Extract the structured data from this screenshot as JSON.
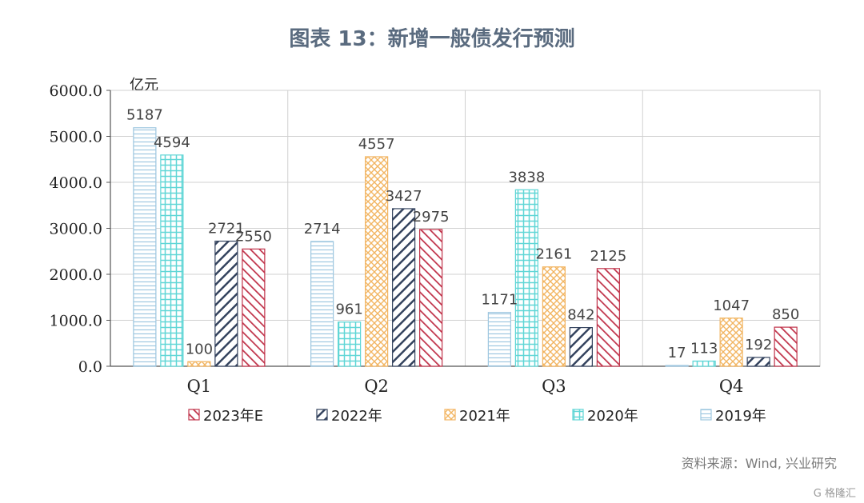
{
  "title": "图表 13：新增一般债发行预测",
  "source": "资料来源：Wind, 兴业研究",
  "watermark": "G 格隆汇",
  "chart_data": {
    "type": "bar",
    "title": "图表 13：新增一般债发行预测",
    "unit_label": "亿元",
    "categories": [
      "Q1",
      "Q2",
      "Q3",
      "Q4"
    ],
    "ylim": [
      0,
      6000
    ],
    "yticks": [
      "0.0",
      "1000.0",
      "2000.0",
      "3000.0",
      "4000.0",
      "5000.0",
      "6000.0"
    ],
    "grid": true,
    "legend_position": "bottom",
    "series": [
      {
        "name": "2019年",
        "values": [
          5187,
          2714,
          1171,
          17
        ],
        "color": "#9ec7e0",
        "pattern": "horizontal-lines"
      },
      {
        "name": "2020年",
        "values": [
          4594,
          961,
          3838,
          113
        ],
        "color": "#5fd6d6",
        "pattern": "grid"
      },
      {
        "name": "2021年",
        "values": [
          100,
          4557,
          2161,
          1047
        ],
        "color": "#f2b562",
        "pattern": "crosshatch"
      },
      {
        "name": "2022年",
        "values": [
          2721,
          3427,
          842,
          192
        ],
        "color": "#34435e",
        "pattern": "diagonal-wide"
      },
      {
        "name": "2023年E",
        "values": [
          2550,
          2975,
          2125,
          850
        ],
        "color": "#c0334a",
        "pattern": "diagonal"
      }
    ],
    "legend_order": [
      "2023年E",
      "2022年",
      "2021年",
      "2020年",
      "2019年"
    ]
  }
}
